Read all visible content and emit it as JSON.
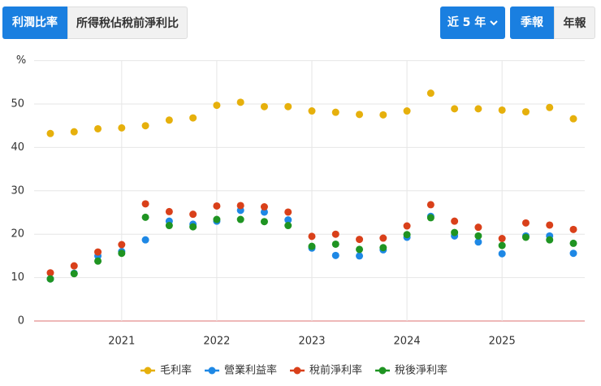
{
  "tabs": {
    "ratio_tabs": [
      "利潤比率",
      "所得稅佔稅前淨利比"
    ],
    "range": "近 5 年",
    "period_tabs": [
      "季報",
      "年報"
    ]
  },
  "chart_data": {
    "type": "line",
    "y_unit": "%",
    "categories": [
      null,
      null,
      null,
      "2021",
      null,
      null,
      null,
      "2022",
      null,
      null,
      null,
      "2023",
      null,
      null,
      null,
      "2024",
      null,
      null,
      null,
      "2025",
      null,
      null,
      null
    ],
    "series": [
      {
        "name": "毛利率",
        "color": "#e6b00c",
        "values": [
          43.2,
          43.6,
          44.3,
          44.5,
          45.0,
          46.3,
          46.8,
          49.7,
          50.4,
          49.4,
          49.4,
          48.4,
          48.1,
          47.6,
          47.5,
          48.4,
          52.5,
          48.9,
          48.9,
          48.6,
          48.2,
          49.2,
          46.6
        ]
      },
      {
        "name": "營業利益率",
        "color": "#1e88e5",
        "values": [
          9.7,
          11.0,
          15.0,
          16.0,
          18.7,
          23.0,
          22.3,
          23.0,
          25.5,
          25.1,
          23.3,
          16.8,
          15.1,
          15.0,
          16.4,
          19.3,
          24.1,
          19.6,
          18.2,
          15.5,
          19.6,
          19.6,
          15.6
        ]
      },
      {
        "name": "稅前淨利率",
        "color": "#d9401a",
        "values": [
          11.1,
          12.7,
          15.9,
          17.6,
          27.0,
          25.2,
          24.6,
          26.5,
          26.6,
          26.3,
          25.1,
          19.5,
          20.0,
          18.8,
          19.1,
          21.9,
          26.8,
          23.0,
          21.6,
          19.0,
          22.6,
          22.1,
          21.1
        ]
      },
      {
        "name": "稅後淨利率",
        "color": "#1f9422",
        "values": [
          9.7,
          10.9,
          13.8,
          15.6,
          23.9,
          22.0,
          21.7,
          23.4,
          23.4,
          22.9,
          22.0,
          17.2,
          17.7,
          16.5,
          16.9,
          19.9,
          23.8,
          20.4,
          19.6,
          17.4,
          19.3,
          18.7,
          17.9
        ]
      }
    ],
    "ylim": [
      0,
      60
    ],
    "yticks": [
      0,
      10,
      20,
      30,
      40,
      50
    ],
    "grid": true
  }
}
